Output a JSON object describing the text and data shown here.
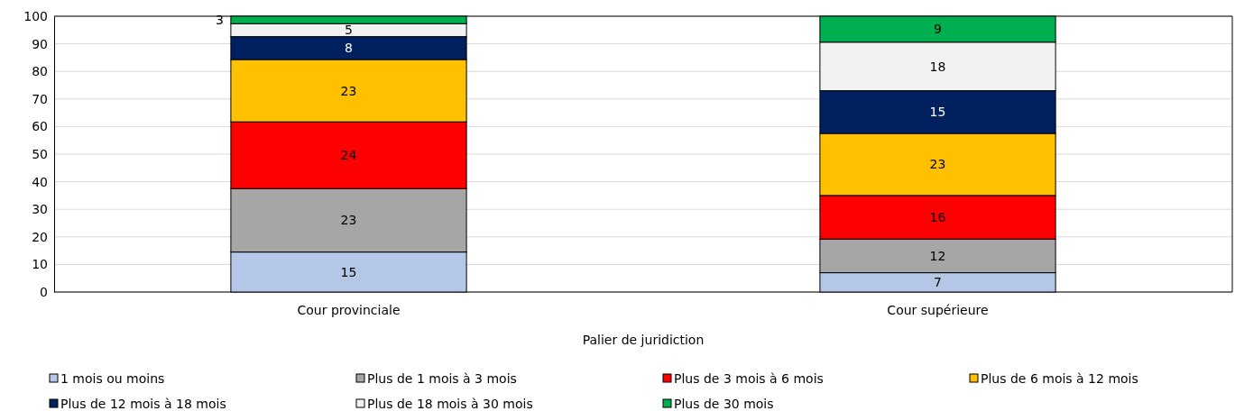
{
  "chart_data": {
    "type": "bar",
    "stacked": true,
    "xlabel": "Palier de juridiction",
    "categories": [
      "Cour provinciale",
      "Cour supérieure"
    ],
    "ylim": [
      0,
      100
    ],
    "yticks": [
      0,
      10,
      20,
      30,
      40,
      50,
      60,
      70,
      80,
      90,
      100
    ],
    "grid": "y",
    "legend": "bottom",
    "series": [
      {
        "name": "1 mois ou moins",
        "color": "#b4c7e7",
        "values": [
          14.5,
          7
        ],
        "value_labels": [
          "15",
          "7"
        ]
      },
      {
        "name": "Plus de 1 mois à 3 mois",
        "color": "#a6a6a6",
        "values": [
          23,
          12.2
        ],
        "value_labels": [
          "23",
          "12"
        ]
      },
      {
        "name": "Plus de 3 mois à 6 mois",
        "color": "#ff0000",
        "values": [
          24.2,
          15.8
        ],
        "value_labels": [
          "24",
          "16"
        ]
      },
      {
        "name": "Plus de 6 mois à 12 mois",
        "color": "#ffc000",
        "values": [
          22.6,
          22.5
        ],
        "value_labels": [
          "23",
          "23"
        ]
      },
      {
        "name": "Plus de 12 mois à 18 mois",
        "color": "#002060",
        "values": [
          8.3,
          15.5
        ],
        "value_labels": [
          "8",
          "15"
        ]
      },
      {
        "name": "Plus de 18 mois à 30 mois",
        "color": "#f2f2f2",
        "values": [
          4.7,
          17.6
        ],
        "value_labels": [
          "5",
          "18"
        ]
      },
      {
        "name": "Plus de 30 mois",
        "color": "#00b050",
        "values": [
          2.7,
          9.4
        ],
        "value_labels": [
          "3",
          "9"
        ]
      }
    ]
  }
}
